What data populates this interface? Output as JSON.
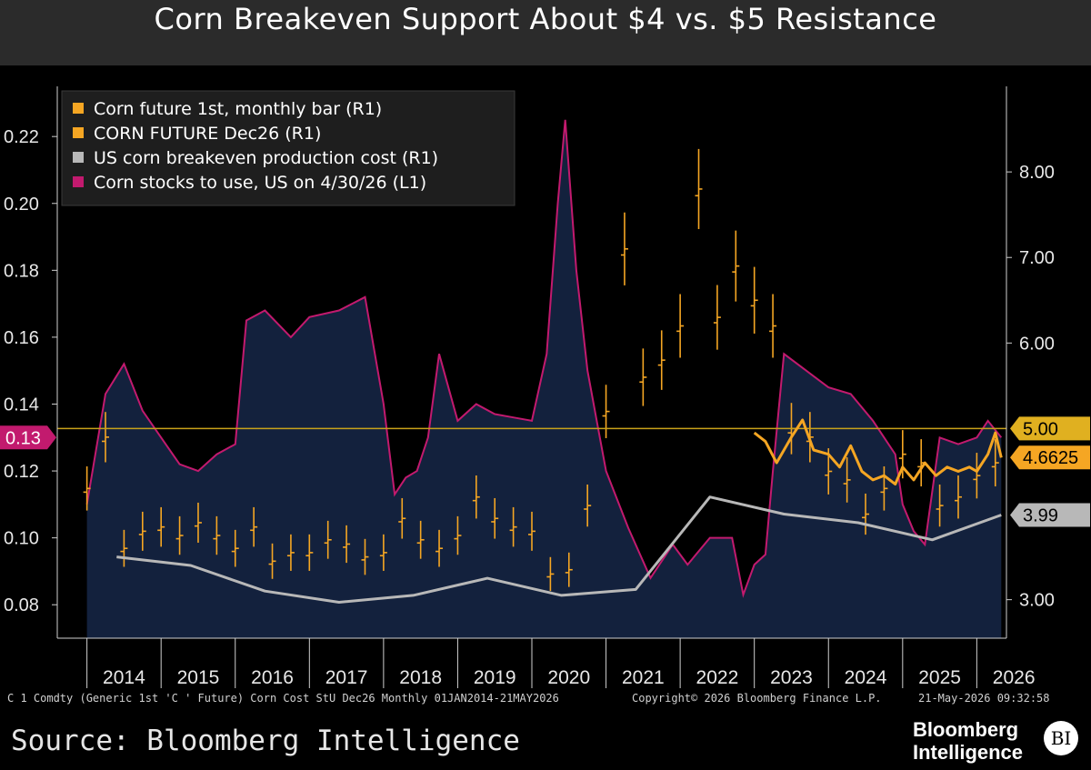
{
  "header": {
    "title": "Corn Breakeven Support About $4 vs. $5 Resistance"
  },
  "legend": [
    {
      "label": "Corn future 1st, monthly bar (R1)",
      "color": "#f5a623"
    },
    {
      "label": "CORN FUTURE Dec26  (R1)",
      "color": "#f5a623"
    },
    {
      "label": "US corn breakeven production cost  (R1)",
      "color": "#b8b8b8"
    },
    {
      "label": "Corn stocks to use, US  on 4/30/26 (L1)",
      "color": "#c21a6e"
    }
  ],
  "badges": {
    "left_current": "0.13",
    "resistance": "5.00",
    "dec26_last": "4.6625",
    "breakeven_last": "3.99"
  },
  "footer": {
    "ticker": "C 1 Comdty (Generic 1st 'C ' Future) Corn Cost StU Dec26 Monthly 01JAN2014-21MAY2026",
    "copyright": "Copyright© 2026 Bloomberg Finance L.P.",
    "timestamp": "21-May-2026 09:32:58",
    "source": "Source: Bloomberg Intelligence",
    "logo_line1": "Bloomberg",
    "logo_line2": "Intelligence",
    "logo_badge": "BI"
  },
  "chart_data": {
    "type": "line",
    "title": "Corn Breakeven Support About $4 vs. $5 Resistance",
    "x_tick_labels": [
      "2014",
      "2015",
      "2016",
      "2017",
      "2018",
      "2019",
      "2020",
      "2021",
      "2022",
      "2023",
      "2024",
      "2025",
      "2026"
    ],
    "x_range": [
      2013.6,
      2026.4
    ],
    "left_axis": {
      "ticks": [
        "0.08",
        "0.10",
        "0.12",
        "0.14",
        "0.16",
        "0.18",
        "0.20",
        "0.22"
      ],
      "range": [
        0.07,
        0.235
      ]
    },
    "right_axis": {
      "ticks": [
        "3.00",
        "6.00",
        "7.00",
        "8.00"
      ],
      "range": [
        2.55,
        9.0
      ]
    },
    "grid": false,
    "legend_position": "top-left",
    "horizontal_line": {
      "value": 5.0,
      "axis": "right",
      "color": "#c8a21a"
    },
    "series": [
      {
        "name": "Corn stocks to use, US  on 4/30/26 (L1)",
        "axis": "left",
        "style": "area",
        "color": "#c21a6e",
        "fill": "#13213d",
        "x": [
          2014.0,
          2014.25,
          2014.5,
          2014.75,
          2015.0,
          2015.25,
          2015.5,
          2015.75,
          2016.0,
          2016.15,
          2016.4,
          2016.75,
          2017.0,
          2017.4,
          2017.75,
          2018.0,
          2018.15,
          2018.3,
          2018.45,
          2018.6,
          2018.75,
          2019.0,
          2019.25,
          2019.5,
          2019.75,
          2020.0,
          2020.2,
          2020.35,
          2020.45,
          2020.6,
          2020.75,
          2020.9,
          2021.0,
          2021.3,
          2021.6,
          2021.9,
          2022.1,
          2022.4,
          2022.7,
          2022.85,
          2023.0,
          2023.15,
          2023.25,
          2023.4,
          2023.7,
          2024.0,
          2024.3,
          2024.6,
          2024.9,
          2025.0,
          2025.15,
          2025.3,
          2025.5,
          2025.75,
          2026.0,
          2026.15,
          2026.33
        ],
        "values": [
          0.11,
          0.143,
          0.152,
          0.138,
          0.13,
          0.122,
          0.12,
          0.125,
          0.128,
          0.165,
          0.168,
          0.16,
          0.166,
          0.168,
          0.172,
          0.14,
          0.113,
          0.118,
          0.12,
          0.13,
          0.155,
          0.135,
          0.14,
          0.137,
          0.136,
          0.135,
          0.155,
          0.2,
          0.225,
          0.18,
          0.15,
          0.132,
          0.12,
          0.103,
          0.088,
          0.098,
          0.092,
          0.1,
          0.1,
          0.083,
          0.092,
          0.095,
          0.12,
          0.155,
          0.15,
          0.145,
          0.143,
          0.135,
          0.125,
          0.11,
          0.102,
          0.098,
          0.13,
          0.128,
          0.13,
          0.135,
          0.13
        ]
      },
      {
        "name": "Corn future 1st, monthly bar (R1)",
        "axis": "right",
        "style": "ohlc",
        "color": "#f5a623",
        "x": [
          2014.0,
          2014.25,
          2014.5,
          2014.75,
          2015.0,
          2015.25,
          2015.5,
          2015.75,
          2016.0,
          2016.25,
          2016.5,
          2016.75,
          2017.0,
          2017.25,
          2017.5,
          2017.75,
          2018.0,
          2018.25,
          2018.5,
          2018.75,
          2019.0,
          2019.25,
          2019.5,
          2019.75,
          2020.0,
          2020.25,
          2020.5,
          2020.75,
          2021.0,
          2021.25,
          2021.5,
          2021.75,
          2022.0,
          2022.25,
          2022.5,
          2022.75,
          2023.0,
          2023.25,
          2023.5,
          2023.75,
          2024.0,
          2024.25,
          2024.5,
          2024.75,
          2025.0,
          2025.25,
          2025.5,
          2025.75,
          2026.0,
          2026.25
        ],
        "values": [
          4.3,
          4.9,
          3.6,
          3.8,
          3.85,
          3.75,
          3.9,
          3.75,
          3.6,
          3.85,
          3.45,
          3.55,
          3.55,
          3.7,
          3.65,
          3.5,
          3.55,
          3.95,
          3.7,
          3.6,
          3.75,
          4.2,
          3.95,
          3.85,
          3.8,
          3.3,
          3.35,
          4.1,
          5.2,
          7.1,
          5.6,
          5.8,
          6.2,
          7.8,
          6.3,
          6.9,
          6.5,
          6.2,
          5.0,
          4.9,
          4.5,
          4.4,
          4.0,
          4.3,
          4.7,
          4.6,
          4.1,
          4.2,
          4.45,
          4.6
        ]
      },
      {
        "name": "CORN FUTURE Dec26  (R1)",
        "axis": "right",
        "style": "line",
        "color": "#f5a623",
        "x": [
          2023.0,
          2023.15,
          2023.3,
          2023.5,
          2023.65,
          2023.8,
          2024.0,
          2024.15,
          2024.3,
          2024.45,
          2024.6,
          2024.75,
          2024.9,
          2025.0,
          2025.15,
          2025.3,
          2025.45,
          2025.6,
          2025.75,
          2025.9,
          2026.0,
          2026.15,
          2026.25,
          2026.33
        ],
        "values": [
          4.95,
          4.85,
          4.6,
          4.9,
          5.1,
          4.75,
          4.7,
          4.55,
          4.8,
          4.5,
          4.4,
          4.45,
          4.35,
          4.55,
          4.4,
          4.6,
          4.45,
          4.55,
          4.5,
          4.55,
          4.5,
          4.7,
          4.95,
          4.66
        ]
      },
      {
        "name": "US corn breakeven production cost  (R1)",
        "axis": "right",
        "style": "line",
        "color": "#b8b8b8",
        "x": [
          2014.4,
          2015.4,
          2016.4,
          2017.4,
          2018.4,
          2019.4,
          2020.4,
          2021.4,
          2022.4,
          2023.4,
          2024.4,
          2025.4,
          2026.33
        ],
        "values": [
          3.5,
          3.4,
          3.1,
          2.97,
          3.05,
          3.25,
          3.05,
          3.12,
          4.2,
          4.0,
          3.9,
          3.7,
          3.99
        ]
      }
    ]
  }
}
